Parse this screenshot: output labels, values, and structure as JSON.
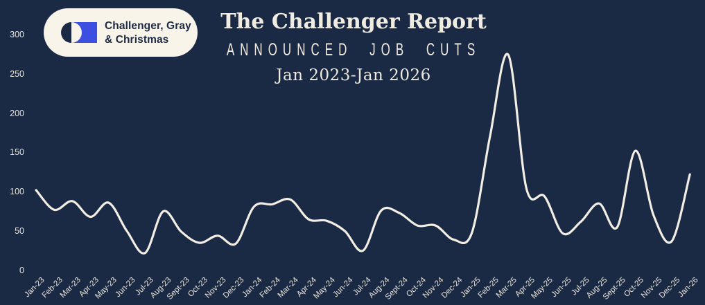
{
  "header": {
    "title": "The Challenger Report",
    "subtitle": "ANNOUNCED JOB CUTS",
    "date_range": "Jan 2023-Jan 2026"
  },
  "logo": {
    "line1": "Challenger, Gray",
    "line2": "& Christmas"
  },
  "colors": {
    "background": "#1b2a44",
    "text_cream": "#f1ece1",
    "line": "#f3eee4",
    "logo_pill": "#f8f4e9",
    "logo_blue": "#3c4fe0",
    "logo_navy": "#1b2a44"
  },
  "chart_data": {
    "type": "line",
    "title": "The Challenger Report",
    "subtitle": "ANNOUNCED JOB CUTS",
    "x_range_label": "Jan 2023-Jan 2026",
    "categories": [
      "Jan-23",
      "Feb-23",
      "Mar-23",
      "Apr-23",
      "May-23",
      "Jun-23",
      "Jul-23",
      "Aug-23",
      "Sept-23",
      "Oct-23",
      "Nov-23",
      "Dec-23",
      "Jan-24",
      "Feb-24",
      "Mar-24",
      "Apr-24",
      "May-24",
      "Jun-24",
      "Jul-24",
      "Aug-24",
      "Sept-24",
      "Oct-24",
      "Nov-24",
      "Dec-24",
      "Jan-25",
      "Feb-25",
      "Mar-25",
      "Apr-25",
      "May-25",
      "Jun-25",
      "Jul-25",
      "Aug-25",
      "Sept-25",
      "Oct-25",
      "Nov-25",
      "Dec-25",
      "Jan-26"
    ],
    "values": [
      103,
      78,
      89,
      69,
      87,
      51,
      23,
      76,
      50,
      36,
      45,
      35,
      82,
      85,
      91,
      66,
      64,
      51,
      26,
      77,
      74,
      58,
      58,
      40,
      49,
      172,
      275,
      105,
      95,
      48,
      63,
      86,
      56,
      153,
      71,
      38,
      123
    ],
    "y_ticks": [
      0,
      50,
      100,
      150,
      200,
      250,
      300
    ],
    "ylim": [
      0,
      310
    ],
    "xlabel": "",
    "ylabel": "",
    "grid": false,
    "legend": "none",
    "line_color": "#f3eee4",
    "smoothing": "catmull-rom"
  }
}
